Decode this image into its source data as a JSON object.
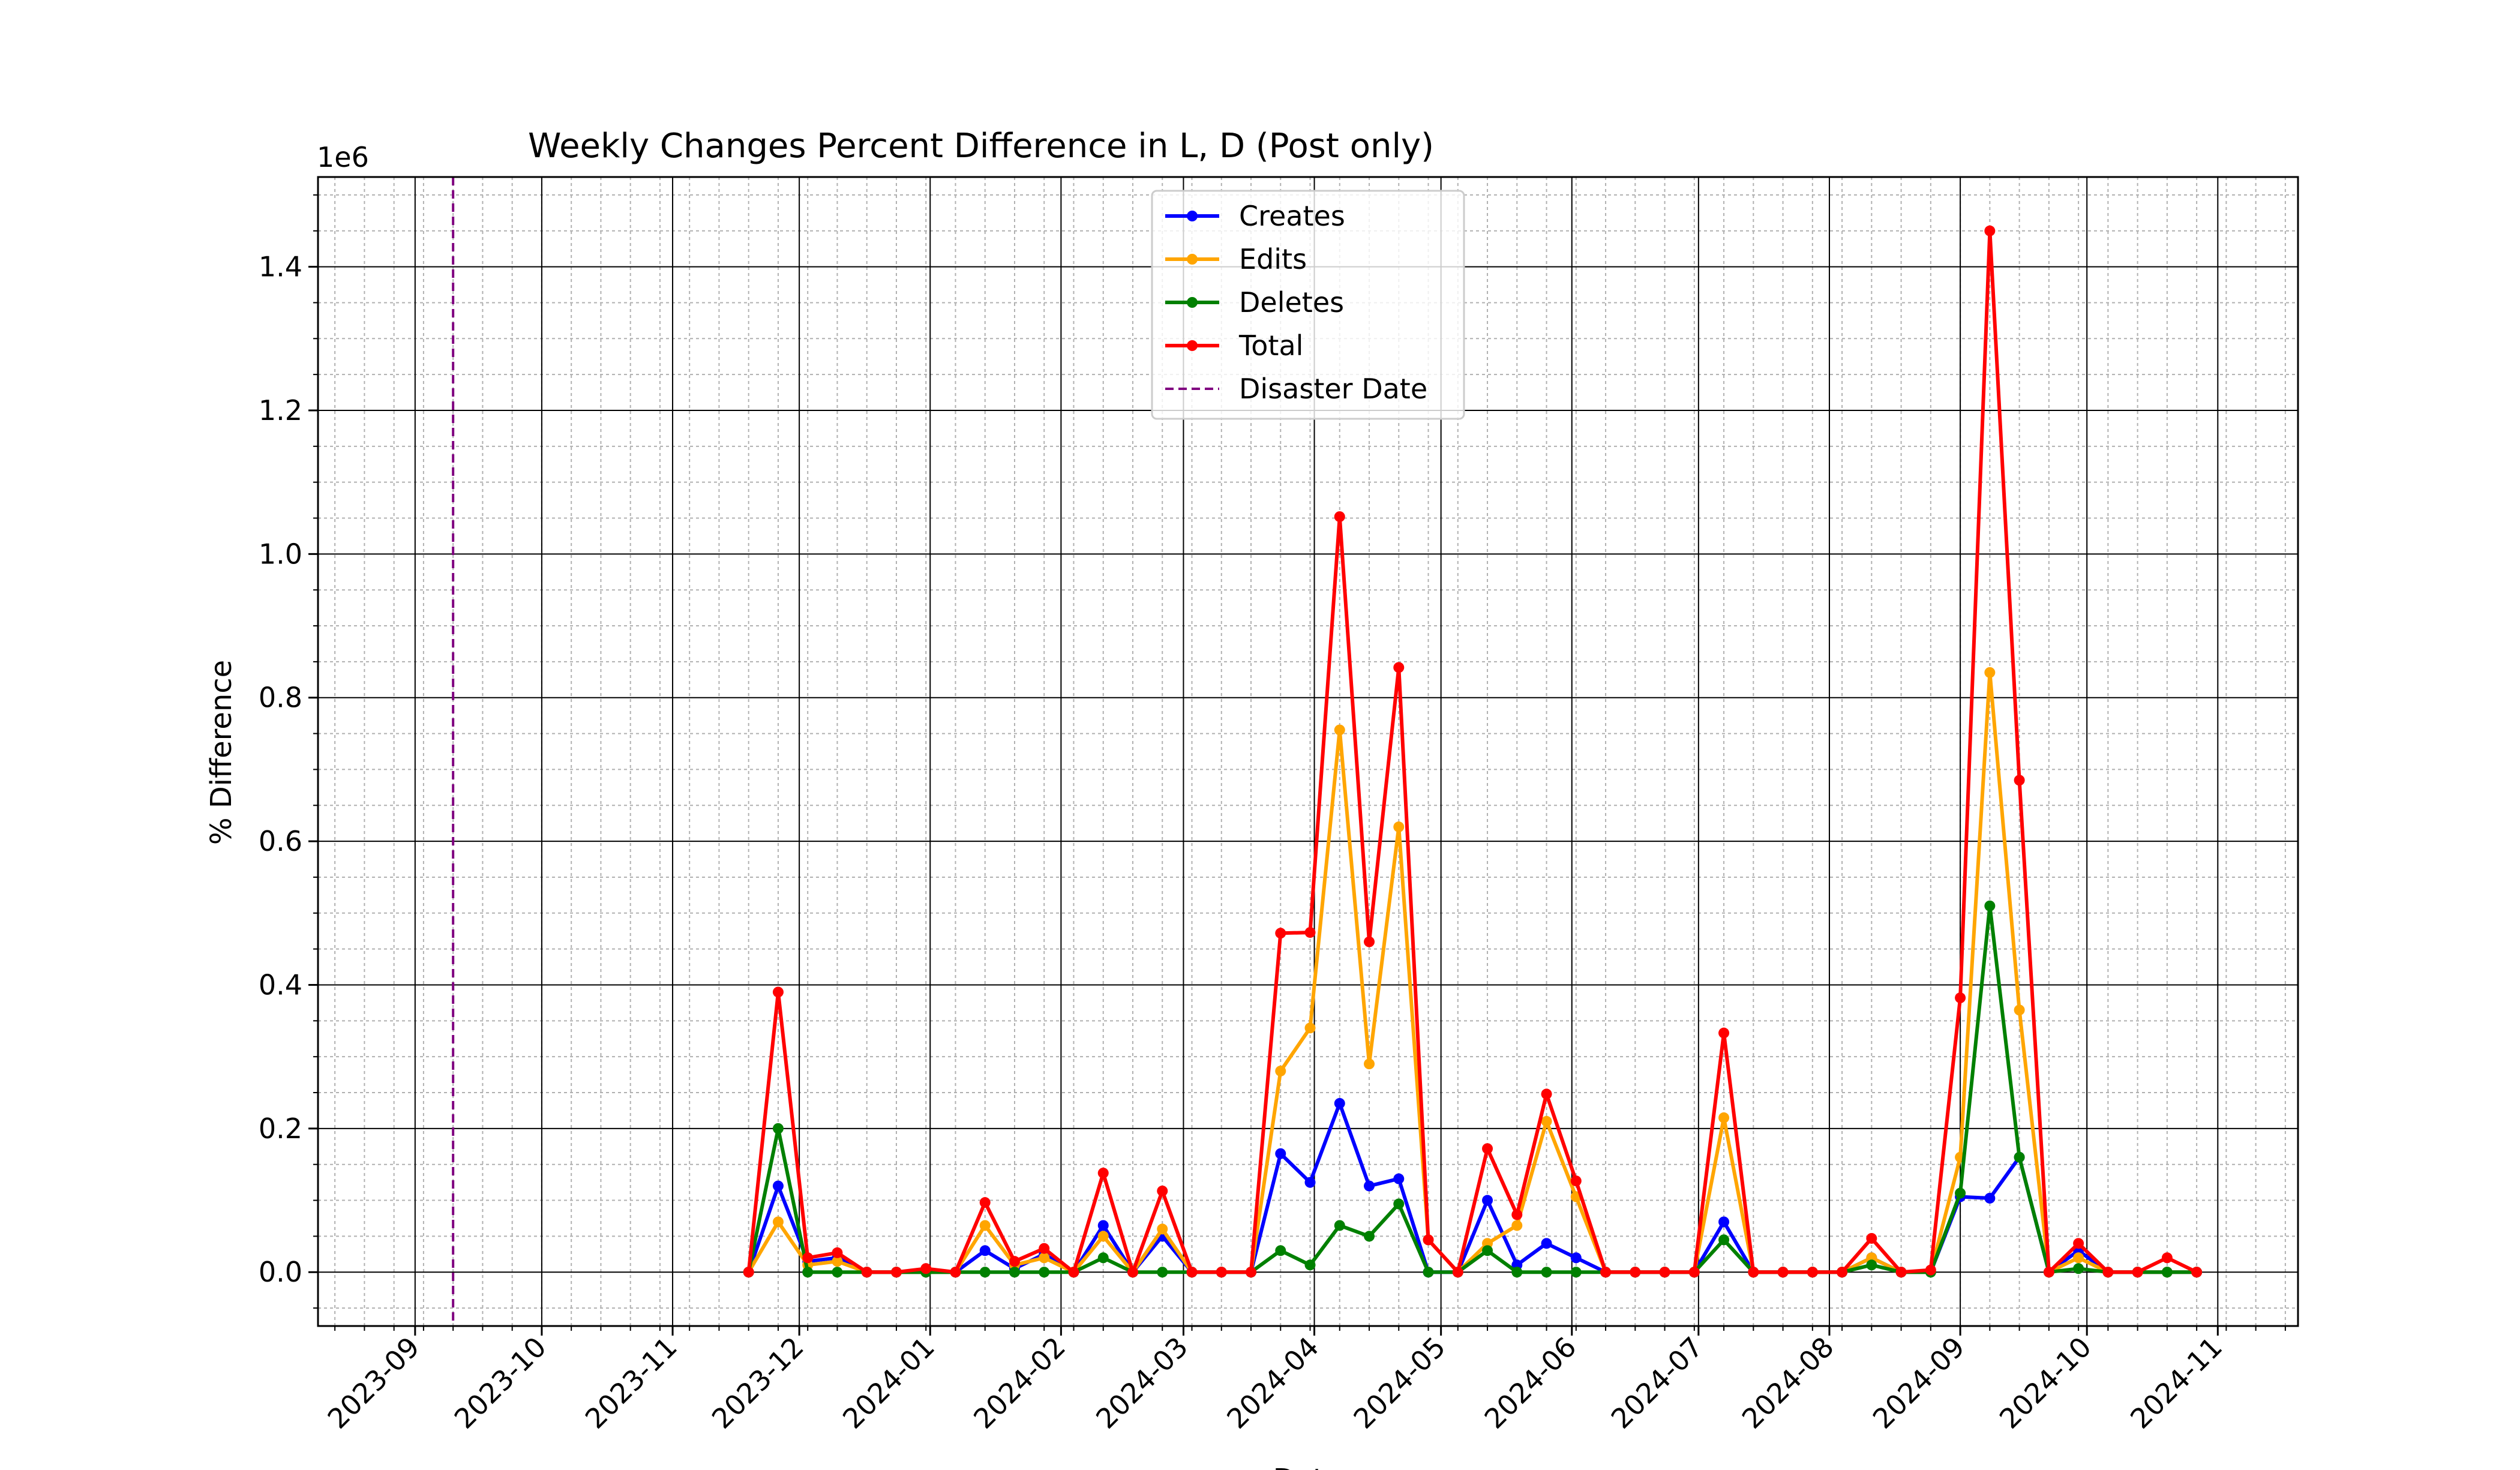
{
  "chart_data": {
    "type": "line",
    "title": "Weekly Changes Percent Difference in L, D (Post only)",
    "xlabel": "Date",
    "ylabel": "% Difference",
    "y_offset_label": "1e6",
    "y_scale": 1000000,
    "xlim": [
      "2023-08-09",
      "2024-11-20"
    ],
    "ylim": [
      -75000,
      1525000
    ],
    "grid": "major and minor",
    "legend_position": "upper center",
    "x_ticks": [
      "2023-09-01",
      "2023-10-01",
      "2023-11-01",
      "2023-12-01",
      "2024-01-01",
      "2024-02-01",
      "2024-03-01",
      "2024-04-01",
      "2024-05-01",
      "2024-06-01",
      "2024-07-01",
      "2024-08-01",
      "2024-09-01",
      "2024-10-01",
      "2024-11-01"
    ],
    "x_tick_labels": [
      "2023-09",
      "2023-10",
      "2023-11",
      "2023-12",
      "2024-01",
      "2024-02",
      "2024-03",
      "2024-04",
      "2024-05",
      "2024-06",
      "2024-07",
      "2024-08",
      "2024-09",
      "2024-10",
      "2024-11"
    ],
    "y_ticks": [
      0,
      200000,
      400000,
      600000,
      800000,
      1000000,
      1200000,
      1400000
    ],
    "y_tick_labels": [
      "0.0",
      "0.2",
      "0.4",
      "0.6",
      "0.8",
      "1.0",
      "1.2",
      "1.4"
    ],
    "x": [
      "2023-11-19",
      "2023-11-26",
      "2023-12-03",
      "2023-12-10",
      "2023-12-17",
      "2023-12-24",
      "2023-12-31",
      "2024-01-07",
      "2024-01-14",
      "2024-01-21",
      "2024-01-28",
      "2024-02-04",
      "2024-02-11",
      "2024-02-18",
      "2024-02-25",
      "2024-03-03",
      "2024-03-10",
      "2024-03-17",
      "2024-03-24",
      "2024-03-31",
      "2024-04-07",
      "2024-04-14",
      "2024-04-21",
      "2024-04-28",
      "2024-05-05",
      "2024-05-12",
      "2024-05-19",
      "2024-05-26",
      "2024-06-02",
      "2024-06-09",
      "2024-06-16",
      "2024-06-23",
      "2024-06-30",
      "2024-07-07",
      "2024-07-14",
      "2024-07-21",
      "2024-07-28",
      "2024-08-04",
      "2024-08-11",
      "2024-08-18",
      "2024-08-25",
      "2024-09-01",
      "2024-09-08",
      "2024-09-15",
      "2024-09-22",
      "2024-09-29",
      "2024-10-06",
      "2024-10-13",
      "2024-10-20",
      "2024-10-27"
    ],
    "series": [
      {
        "name": "Creates",
        "color": "#0000ff",
        "values": [
          0,
          120000,
          15000,
          20000,
          0,
          0,
          0,
          0,
          30000,
          5000,
          25000,
          0,
          65000,
          0,
          50000,
          0,
          0,
          0,
          165000,
          125000,
          235000,
          120000,
          130000,
          0,
          0,
          100000,
          10000,
          40000,
          20000,
          0,
          0,
          0,
          0,
          70000,
          0,
          0,
          0,
          0,
          20000,
          0,
          0,
          105000,
          103000,
          160000,
          0,
          30000,
          0,
          0,
          0,
          0
        ]
      },
      {
        "name": "Edits",
        "color": "#ffa500",
        "values": [
          0,
          70000,
          10000,
          15000,
          0,
          0,
          0,
          0,
          65000,
          10000,
          20000,
          0,
          50000,
          0,
          60000,
          0,
          0,
          0,
          280000,
          340000,
          755000,
          290000,
          620000,
          45000,
          0,
          40000,
          65000,
          210000,
          105000,
          0,
          0,
          0,
          0,
          215000,
          0,
          0,
          0,
          0,
          20000,
          0,
          0,
          160000,
          835000,
          365000,
          0,
          20000,
          0,
          0,
          0,
          0
        ]
      },
      {
        "name": "Deletes",
        "color": "#008000",
        "values": [
          0,
          200000,
          0,
          0,
          0,
          0,
          0,
          0,
          0,
          0,
          0,
          0,
          20000,
          0,
          0,
          0,
          0,
          0,
          30000,
          10000,
          65000,
          50000,
          95000,
          0,
          0,
          30000,
          0,
          0,
          0,
          0,
          0,
          0,
          0,
          45000,
          0,
          0,
          0,
          0,
          10000,
          0,
          0,
          110000,
          510000,
          160000,
          0,
          5000,
          0,
          0,
          0,
          0
        ]
      },
      {
        "name": "Total",
        "color": "#ff0000",
        "values": [
          0,
          390000,
          20000,
          27000,
          0,
          0,
          5000,
          0,
          97000,
          15000,
          33000,
          0,
          138000,
          0,
          113000,
          0,
          0,
          0,
          472000,
          473000,
          1052000,
          460000,
          842000,
          45000,
          0,
          172000,
          80000,
          248000,
          127000,
          0,
          0,
          0,
          0,
          333000,
          0,
          0,
          0,
          0,
          47000,
          0,
          3000,
          382000,
          1450000,
          685000,
          0,
          40000,
          0,
          0,
          20000,
          0
        ]
      }
    ],
    "vlines": [
      {
        "name": "Disaster Date",
        "x": "2023-09-10",
        "color": "#800080",
        "style": "dashed"
      }
    ]
  }
}
